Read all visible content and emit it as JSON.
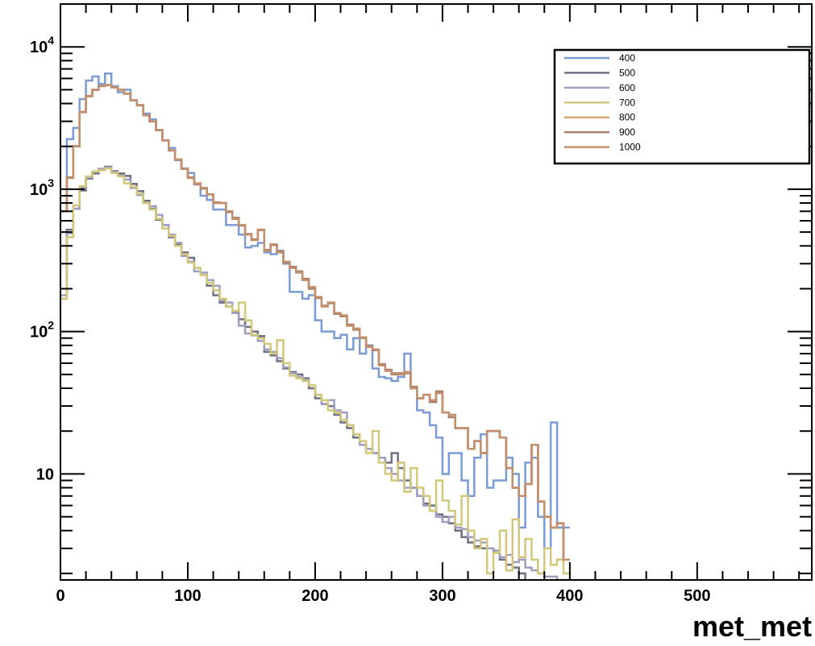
{
  "chart_data": {
    "type": "line",
    "style": "step-histogram",
    "xlabel": "met_met",
    "ylabel": "",
    "title": "",
    "xlim": [
      0,
      590
    ],
    "ylim": [
      1.8,
      20000
    ],
    "yscale": "log",
    "grid": false,
    "legend_position": "top-right",
    "bin_width": 5,
    "x_ticks": [
      0,
      100,
      200,
      300,
      400,
      500
    ],
    "x_tick_labels": [
      "0",
      "100",
      "200",
      "300",
      "400",
      "500"
    ],
    "y_ticks": [
      10,
      100,
      1000,
      10000
    ],
    "y_tick_labels": [
      "10",
      "10^2",
      "10^3",
      "10^4"
    ],
    "series": [
      {
        "name": "400",
        "color": "#7a9bd6",
        "values": [
          700,
          2250,
          2700,
          4300,
          5800,
          6200,
          5500,
          6500,
          5300,
          4800,
          5000,
          4200,
          3900,
          3400,
          3100,
          2600,
          2200,
          1950,
          1600,
          1400,
          1300,
          1080,
          900,
          840,
          720,
          720,
          560,
          560,
          480,
          390,
          400,
          420,
          360,
          350,
          370,
          300,
          190,
          190,
          170,
          180,
          120,
          100,
          100,
          90,
          95,
          75,
          90,
          70,
          80,
          55,
          48,
          47,
          45,
          48,
          70,
          40,
          28,
          27,
          22,
          18,
          10,
          14,
          14,
          9,
          7,
          13,
          19,
          8,
          9,
          9,
          13,
          10,
          4.2,
          12,
          13,
          5,
          3,
          23,
          4.2,
          4.2
        ]
      },
      {
        "name": "500",
        "color": "#707080",
        "values": [
          170,
          520,
          730,
          980,
          1190,
          1290,
          1390,
          1440,
          1340,
          1290,
          1240,
          1090,
          970,
          830,
          730,
          610,
          560,
          460,
          410,
          360,
          330,
          280,
          250,
          210,
          180,
          160,
          150,
          138,
          122,
          108,
          100,
          93,
          72,
          68,
          62,
          55,
          52,
          50,
          47,
          40,
          34,
          31,
          30,
          26,
          23,
          21,
          18,
          16,
          15,
          14,
          13,
          12,
          14,
          11,
          9,
          8,
          7,
          6.2,
          6,
          5.2,
          5,
          4.5,
          4,
          3.6,
          3.3,
          3.1,
          3,
          3,
          2.8,
          2.5,
          2.3,
          2.2,
          2,
          1.5,
          1.5,
          1.5,
          1.5,
          1.5,
          1.5,
          1.5
        ]
      },
      {
        "name": "600",
        "color": "#a09ec0",
        "values": [
          180,
          490,
          730,
          1020,
          1210,
          1330,
          1390,
          1420,
          1320,
          1250,
          1170,
          1020,
          910,
          800,
          760,
          660,
          560,
          480,
          420,
          340,
          310,
          265,
          260,
          230,
          210,
          165,
          160,
          135,
          110,
          97,
          94,
          86,
          75,
          72,
          65,
          56,
          51,
          48,
          46,
          42,
          36,
          31,
          33,
          28,
          27,
          22,
          19,
          16,
          15,
          14,
          13,
          11,
          10,
          9,
          8,
          8,
          7,
          6,
          5.5,
          5,
          4.6,
          5,
          4.2,
          4.1,
          3.6,
          3.4,
          3.3,
          3,
          2.9,
          2.6,
          2.7,
          2.4,
          2.5,
          2.2,
          2.1,
          2,
          1.9,
          1.9,
          1.8,
          1.8
        ]
      },
      {
        "name": "700",
        "color": "#d3c77a",
        "values": [
          170,
          460,
          770,
          1050,
          1230,
          1330,
          1360,
          1400,
          1300,
          1230,
          1100,
          1040,
          930,
          800,
          720,
          620,
          530,
          470,
          400,
          350,
          305,
          280,
          250,
          220,
          195,
          170,
          150,
          140,
          160,
          120,
          95,
          90,
          82,
          70,
          87,
          60,
          49,
          47,
          45,
          42,
          36,
          33,
          28,
          27,
          24,
          22,
          19,
          17,
          14,
          20,
          12,
          10,
          9,
          12,
          7.5,
          11,
          8,
          7,
          5.5,
          9,
          6.5,
          5.5,
          4.4,
          7,
          4,
          3,
          3.5,
          2,
          2.8,
          4,
          2.1,
          4.8,
          2.6,
          3.5,
          2.5,
          2,
          3,
          2.3,
          2.5,
          2
        ]
      },
      {
        "name": "800",
        "color": "#e0a56e",
        "values": [
          700,
          1200,
          2000,
          3500,
          4500,
          5000,
          5300,
          5400,
          5200,
          5000,
          4700,
          4200,
          3900,
          3300,
          3000,
          2600,
          2200,
          1880,
          1620,
          1390,
          1200,
          1100,
          1020,
          920,
          800,
          800,
          700,
          620,
          560,
          480,
          440,
          520,
          370,
          410,
          360,
          310,
          280,
          260,
          230,
          205,
          175,
          150,
          160,
          135,
          130,
          110,
          105,
          90,
          78,
          75,
          58,
          53,
          51,
          50,
          52,
          40,
          34,
          36,
          33,
          37,
          27,
          26,
          21,
          21,
          15,
          17,
          14,
          20,
          20,
          18,
          11,
          8,
          7,
          8.5,
          16,
          6.4,
          5,
          4.2,
          4.5,
          2.5
        ]
      },
      {
        "name": "900",
        "color": "#a87f6a",
        "values": [
          700,
          1210,
          2010,
          3480,
          4520,
          4980,
          5310,
          5380,
          5190,
          5010,
          4680,
          4220,
          3880,
          3310,
          2990,
          2610,
          2210,
          1870,
          1610,
          1390,
          1210,
          1090,
          1010,
          920,
          810,
          800,
          690,
          630,
          555,
          485,
          445,
          515,
          375,
          405,
          365,
          305,
          285,
          265,
          235,
          200,
          172,
          152,
          158,
          133,
          128,
          112,
          103,
          91,
          79,
          74,
          59,
          54,
          50,
          51,
          51,
          41,
          34,
          36,
          32,
          38,
          27,
          25,
          21,
          21,
          15,
          17,
          14,
          20,
          20,
          18,
          11,
          8,
          7,
          8.5,
          16,
          6.4,
          5,
          4.2,
          4.5,
          2.5
        ]
      },
      {
        "name": "1000",
        "color": "#c2906f",
        "values": [
          700,
          1200,
          2000,
          3500,
          4500,
          5000,
          5300,
          5400,
          5200,
          5000,
          4700,
          4200,
          3900,
          3300,
          3000,
          2600,
          2200,
          1880,
          1620,
          1390,
          1200,
          1100,
          1020,
          920,
          800,
          800,
          700,
          620,
          560,
          480,
          440,
          520,
          370,
          410,
          360,
          310,
          280,
          260,
          230,
          205,
          175,
          150,
          160,
          135,
          130,
          110,
          105,
          90,
          78,
          75,
          58,
          53,
          51,
          50,
          52,
          40,
          34,
          36,
          33,
          37,
          27,
          26,
          21,
          21,
          15,
          17,
          14,
          20,
          20,
          18,
          11,
          8,
          7,
          8.5,
          16,
          6.4,
          5,
          4.2,
          4.5,
          2.5
        ]
      }
    ]
  }
}
